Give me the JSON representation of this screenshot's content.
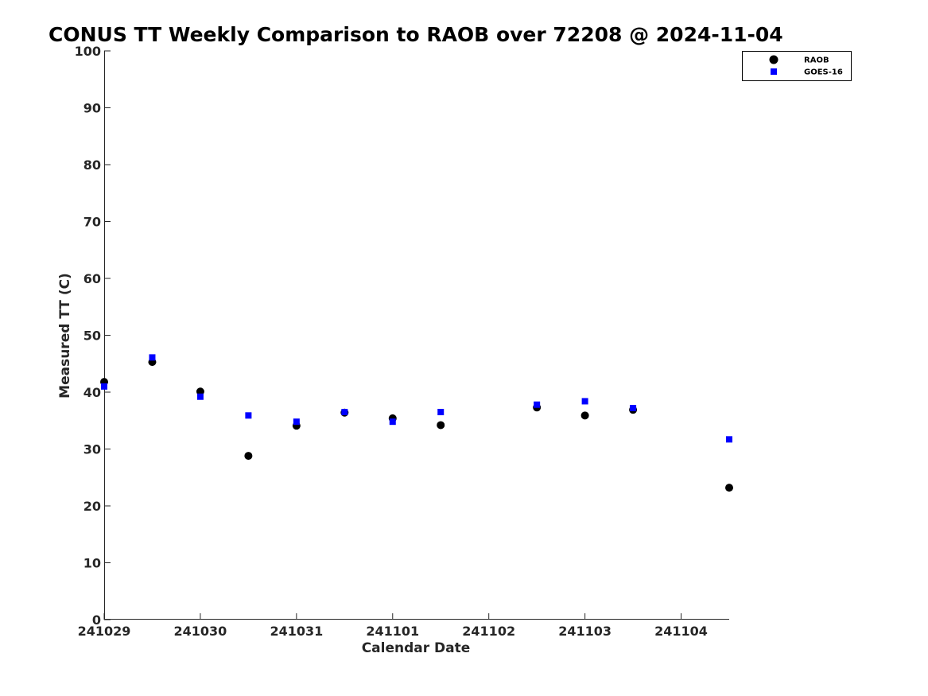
{
  "chart_data": {
    "type": "scatter",
    "title": "CONUS TT Weekly Comparison to RAOB over 72208 @ 2024-11-04",
    "xlabel": "Calendar Date",
    "ylabel": "Measured TT (C)",
    "x_unit": "day",
    "x_ticks": [
      "241029",
      "241030",
      "241031",
      "241101",
      "241102",
      "241103",
      "241104"
    ],
    "xlim": [
      "241029 00Z",
      "241104 12Z"
    ],
    "ylim": [
      0,
      100
    ],
    "y_ticks": [
      0,
      10,
      20,
      30,
      40,
      50,
      60,
      70,
      80,
      90,
      100
    ],
    "grid": false,
    "legend_position": "top-right",
    "series": [
      {
        "name": "RAOB",
        "marker": "circle",
        "color": "#000000",
        "points": [
          {
            "x": "241029 00Z",
            "y": 41.8
          },
          {
            "x": "241029 12Z",
            "y": 45.3
          },
          {
            "x": "241030 00Z",
            "y": 40.1
          },
          {
            "x": "241030 12Z",
            "y": 28.8
          },
          {
            "x": "241031 00Z",
            "y": 34.1
          },
          {
            "x": "241031 12Z",
            "y": 36.4
          },
          {
            "x": "241101 00Z",
            "y": 35.4
          },
          {
            "x": "241101 12Z",
            "y": 34.2
          },
          {
            "x": "241102 12Z",
            "y": 37.3
          },
          {
            "x": "241103 00Z",
            "y": 35.9
          },
          {
            "x": "241103 12Z",
            "y": 36.9
          },
          {
            "x": "241104 12Z",
            "y": 23.2
          }
        ]
      },
      {
        "name": "GOES-16",
        "marker": "square",
        "color": "#0000ff",
        "points": [
          {
            "x": "241029 00Z",
            "y": 41.0
          },
          {
            "x": "241029 12Z",
            "y": 46.1
          },
          {
            "x": "241030 00Z",
            "y": 39.2
          },
          {
            "x": "241030 12Z",
            "y": 35.9
          },
          {
            "x": "241031 00Z",
            "y": 34.8
          },
          {
            "x": "241031 12Z",
            "y": 36.5
          },
          {
            "x": "241101 00Z",
            "y": 34.8
          },
          {
            "x": "241101 12Z",
            "y": 36.5
          },
          {
            "x": "241102 12Z",
            "y": 37.8
          },
          {
            "x": "241103 00Z",
            "y": 38.4
          },
          {
            "x": "241103 12Z",
            "y": 37.2
          },
          {
            "x": "241104 12Z",
            "y": 31.7
          }
        ]
      }
    ]
  }
}
